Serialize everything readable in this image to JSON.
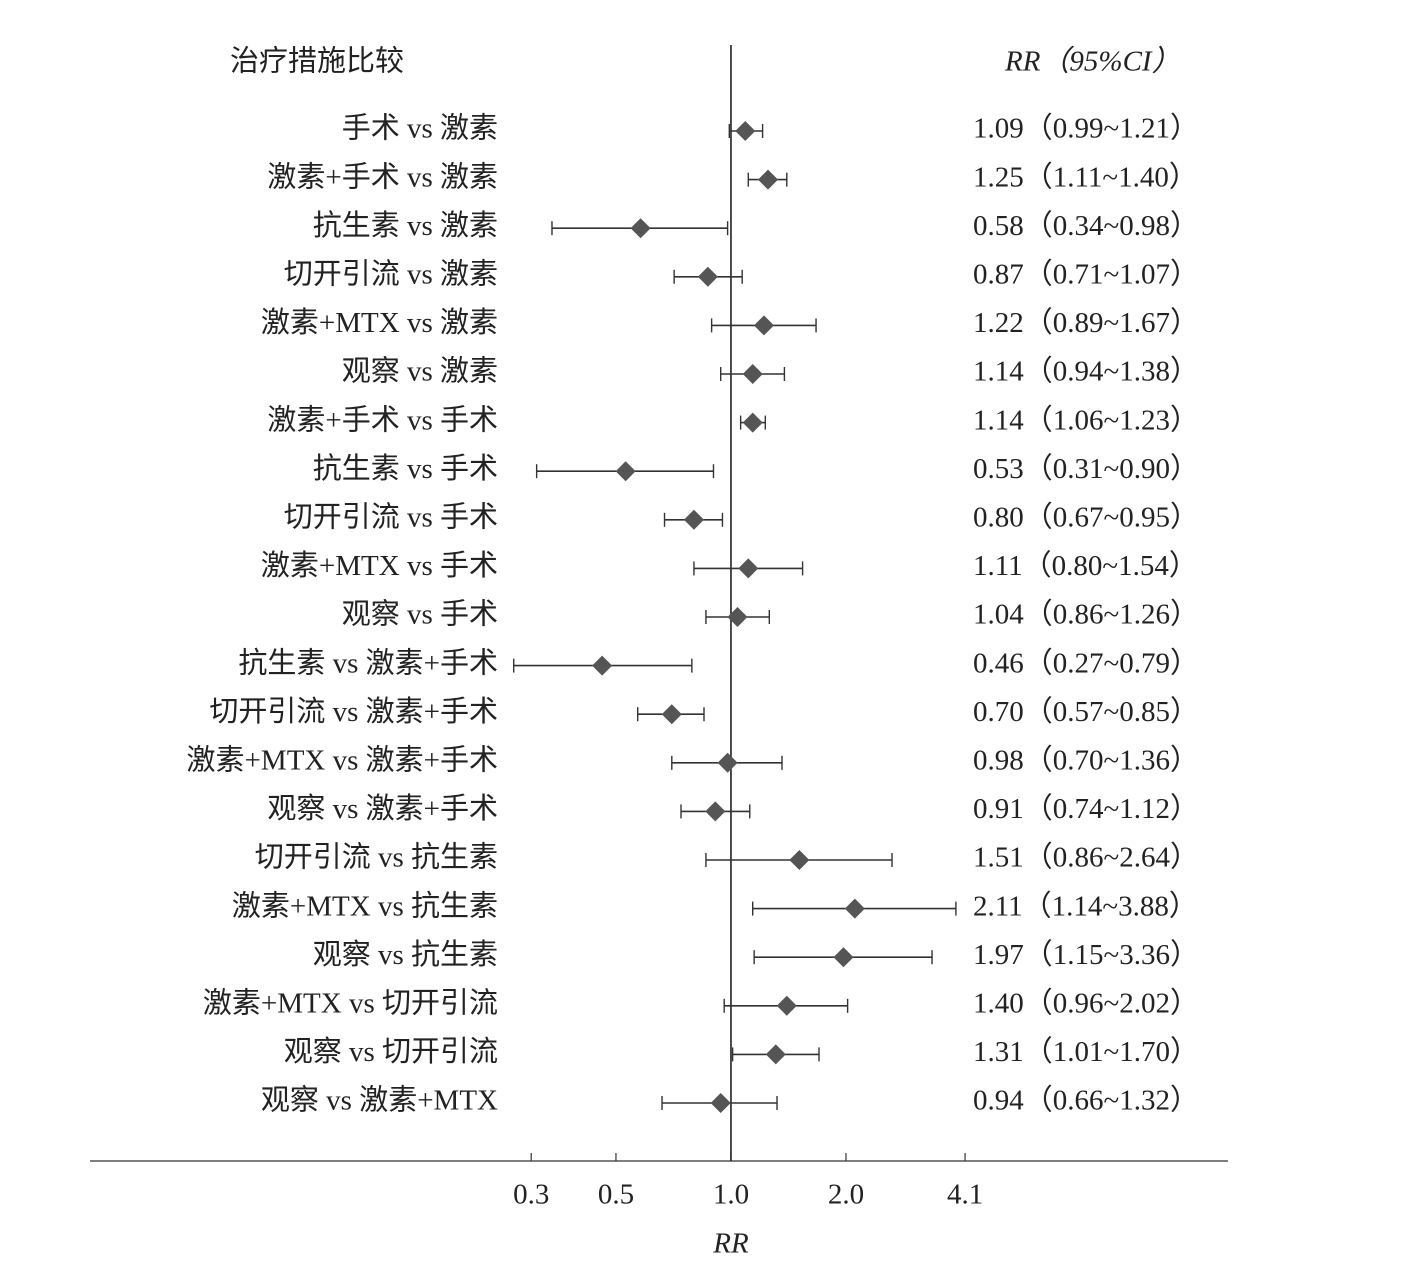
{
  "chart_data": {
    "type": "forest",
    "title": "治疗措施比较",
    "value_header": "RR（95%CI）",
    "x_label": "RR",
    "log_scale": true,
    "color": "#555555",
    "xlim": [
      0.021,
      20
    ],
    "xticks": [
      0.3,
      0.5,
      {
        "value": 1,
        "label": "1.0"
      },
      {
        "value": 2,
        "label": "2.0"
      },
      4.1
    ],
    "reference": 1,
    "categories": [
      "手术 vs 激素",
      "激素+手术 vs 激素",
      "抗生素 vs 激素",
      "切开引流 vs 激素",
      "激素+MTX vs 激素",
      "观察 vs 激素",
      "激素+手术 vs 手术",
      "抗生素 vs 手术",
      "切开引流 vs 手术",
      "激素+MTX vs 手术",
      "观察 vs 手术",
      "抗生素 vs 激素+手术",
      "切开引流 vs 激素+手术",
      "激素+MTX vs 激素+手术",
      "观察 vs 激素+手术",
      "切开引流 vs 抗生素",
      "激素+MTX vs 抗生素",
      "观察 vs 抗生素",
      "激素+MTX vs 切开引流",
      "观察 vs 切开引流",
      "观察 vs 激素+MTX"
    ],
    "values": [
      1.09,
      1.25,
      0.58,
      0.87,
      1.22,
      1.14,
      1.14,
      0.53,
      0.8,
      1.11,
      1.04,
      0.46,
      0.7,
      0.98,
      0.91,
      1.51,
      2.11,
      1.97,
      1.4,
      1.31,
      0.94
    ],
    "lower": [
      0.99,
      1.11,
      0.34,
      0.71,
      0.89,
      0.94,
      1.06,
      0.31,
      0.67,
      0.8,
      0.86,
      0.27,
      0.57,
      0.7,
      0.74,
      0.86,
      1.14,
      1.15,
      0.96,
      1.01,
      0.66
    ],
    "upper": [
      1.21,
      1.4,
      0.98,
      1.07,
      1.67,
      1.38,
      1.23,
      0.9,
      0.95,
      1.54,
      1.26,
      0.79,
      0.85,
      1.36,
      1.12,
      2.64,
      3.88,
      3.36,
      2.02,
      1.7,
      1.32
    ],
    "value_labels": [
      "1.09（0.99~1.21）",
      "1.25（1.11~1.40）",
      "0.58（0.34~0.98）",
      "0.87（0.71~1.07）",
      "1.22（0.89~1.67）",
      "1.14（0.94~1.38）",
      "1.14（1.06~1.23）",
      "0.53（0.31~0.90）",
      "0.80（0.67~0.95）",
      "1.11（0.80~1.54）",
      "1.04（0.86~1.26）",
      "0.46（0.27~0.79）",
      "0.70（0.57~0.85）",
      "0.98（0.70~1.36）",
      "0.91（0.74~1.12）",
      "1.51（0.86~2.64）",
      "2.11（1.14~3.88）",
      "1.97（1.15~3.36）",
      "1.40（0.96~2.02）",
      "1.31（1.01~1.70）",
      "0.94（0.66~1.32）"
    ]
  }
}
